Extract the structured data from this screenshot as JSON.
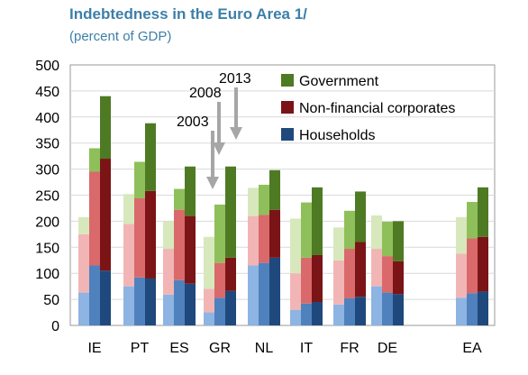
{
  "chart_data": {
    "type": "bar",
    "title": "Indebtedness in the Euro Area 1/",
    "subtitle": "(percent of GDP)",
    "ylim": [
      0,
      500
    ],
    "yticks": [
      0,
      50,
      100,
      150,
      200,
      250,
      300,
      350,
      400,
      450,
      500
    ],
    "categories": [
      "IE",
      "PT",
      "ES",
      "GR",
      "NL",
      "IT",
      "FR",
      "DE",
      "EA"
    ],
    "years": [
      "2003",
      "2008",
      "2013"
    ],
    "legend": {
      "placement": "top-right",
      "entries": [
        "Government",
        "Non-financial corporates",
        "Households"
      ]
    },
    "annotations": [
      "2003",
      "2008",
      "2013"
    ],
    "colors": {
      "Households": [
        "#8db4e2",
        "#4f81bd",
        "#1f497d"
      ],
      "Non-financial corporates": [
        "#f2b5b5",
        "#d9696b",
        "#7b1416"
      ],
      "Government": [
        "#d7e8bc",
        "#8fbf5a",
        "#4e7a24"
      ]
    },
    "series": [
      {
        "name": "Households",
        "values": [
          [
            63,
            115,
            105
          ],
          [
            75,
            92,
            90
          ],
          [
            59,
            87,
            80
          ],
          [
            25,
            53,
            66
          ],
          [
            115,
            120,
            130
          ],
          [
            30,
            42,
            45
          ],
          [
            40,
            52,
            55
          ],
          [
            75,
            63,
            60
          ],
          [
            53,
            62,
            65
          ]
        ]
      },
      {
        "name": "Non-financial corporates",
        "values": [
          [
            112,
            180,
            215
          ],
          [
            120,
            152,
            168
          ],
          [
            88,
            135,
            130
          ],
          [
            45,
            67,
            64
          ],
          [
            95,
            92,
            92
          ],
          [
            70,
            88,
            90
          ],
          [
            85,
            95,
            105
          ],
          [
            72,
            70,
            63
          ],
          [
            85,
            105,
            105
          ]
        ]
      },
      {
        "name": "Government",
        "values": [
          [
            33,
            45,
            120
          ],
          [
            57,
            70,
            130
          ],
          [
            53,
            40,
            95
          ],
          [
            100,
            112,
            175
          ],
          [
            54,
            58,
            76
          ],
          [
            105,
            106,
            130
          ],
          [
            63,
            73,
            97
          ],
          [
            64,
            66,
            77
          ],
          [
            70,
            70,
            95
          ]
        ]
      }
    ]
  }
}
